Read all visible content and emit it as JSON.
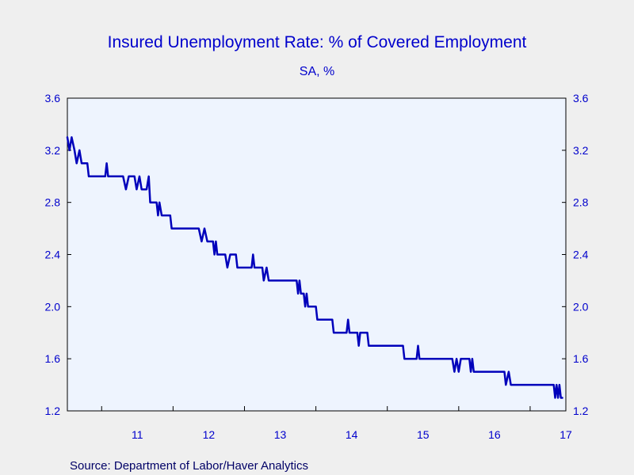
{
  "chart_data": {
    "type": "line",
    "title": "Insured Unemployment Rate: % of Covered Employment",
    "subtitle": "SA, %",
    "source": "Source:  Department of Labor/Haver Analytics",
    "ylim": [
      1.2,
      3.6
    ],
    "yticks": [
      "1.2",
      "1.6",
      "2.0",
      "2.4",
      "2.8",
      "3.2",
      "3.6"
    ],
    "xlim": [
      2010.52,
      2017.5
    ],
    "xtick_labels": [
      "11",
      "12",
      "13",
      "14",
      "15",
      "16",
      "17"
    ],
    "grid": false,
    "colors": {
      "line": "#0000bb",
      "plot_bg": "#eef4fe",
      "page_bg": "#efefef",
      "text": "#0000cc"
    },
    "series": [
      {
        "points": [
          [
            2010.52,
            3.3
          ],
          [
            2010.55,
            3.2
          ],
          [
            2010.58,
            3.3
          ],
          [
            2010.62,
            3.2
          ],
          [
            2010.65,
            3.1
          ],
          [
            2010.69,
            3.2
          ],
          [
            2010.72,
            3.1
          ],
          [
            2010.8,
            3.1
          ],
          [
            2010.82,
            3.0
          ],
          [
            2011.05,
            3.0
          ],
          [
            2011.07,
            3.1
          ],
          [
            2011.09,
            3.0
          ],
          [
            2011.3,
            3.0
          ],
          [
            2011.34,
            2.9
          ],
          [
            2011.38,
            3.0
          ],
          [
            2011.46,
            3.0
          ],
          [
            2011.49,
            2.9
          ],
          [
            2011.53,
            3.0
          ],
          [
            2011.56,
            2.9
          ],
          [
            2011.63,
            2.9
          ],
          [
            2011.66,
            3.0
          ],
          [
            2011.68,
            2.8
          ],
          [
            2011.77,
            2.8
          ],
          [
            2011.79,
            2.7
          ],
          [
            2011.81,
            2.8
          ],
          [
            2011.84,
            2.7
          ],
          [
            2011.96,
            2.7
          ],
          [
            2011.98,
            2.6
          ],
          [
            2012.36,
            2.6
          ],
          [
            2012.4,
            2.5
          ],
          [
            2012.44,
            2.6
          ],
          [
            2012.48,
            2.5
          ],
          [
            2012.56,
            2.5
          ],
          [
            2012.58,
            2.4
          ],
          [
            2012.6,
            2.5
          ],
          [
            2012.62,
            2.4
          ],
          [
            2012.73,
            2.4
          ],
          [
            2012.76,
            2.3
          ],
          [
            2012.8,
            2.4
          ],
          [
            2012.88,
            2.4
          ],
          [
            2012.9,
            2.3
          ],
          [
            2013.1,
            2.3
          ],
          [
            2013.12,
            2.4
          ],
          [
            2013.14,
            2.3
          ],
          [
            2013.25,
            2.3
          ],
          [
            2013.27,
            2.2
          ],
          [
            2013.31,
            2.3
          ],
          [
            2013.34,
            2.2
          ],
          [
            2013.73,
            2.2
          ],
          [
            2013.75,
            2.1
          ],
          [
            2013.77,
            2.2
          ],
          [
            2013.79,
            2.1
          ],
          [
            2013.83,
            2.1
          ],
          [
            2013.85,
            2.0
          ],
          [
            2013.87,
            2.1
          ],
          [
            2013.89,
            2.0
          ],
          [
            2014.0,
            2.0
          ],
          [
            2014.02,
            1.9
          ],
          [
            2014.23,
            1.9
          ],
          [
            2014.25,
            1.8
          ],
          [
            2014.43,
            1.8
          ],
          [
            2014.45,
            1.9
          ],
          [
            2014.47,
            1.8
          ],
          [
            2014.58,
            1.8
          ],
          [
            2014.6,
            1.7
          ],
          [
            2014.62,
            1.8
          ],
          [
            2014.72,
            1.8
          ],
          [
            2014.74,
            1.7
          ],
          [
            2015.22,
            1.7
          ],
          [
            2015.24,
            1.6
          ],
          [
            2015.41,
            1.6
          ],
          [
            2015.43,
            1.7
          ],
          [
            2015.45,
            1.6
          ],
          [
            2015.91,
            1.6
          ],
          [
            2015.94,
            1.5
          ],
          [
            2015.97,
            1.6
          ],
          [
            2016.0,
            1.5
          ],
          [
            2016.03,
            1.6
          ],
          [
            2016.15,
            1.6
          ],
          [
            2016.17,
            1.5
          ],
          [
            2016.19,
            1.6
          ],
          [
            2016.21,
            1.5
          ],
          [
            2016.64,
            1.5
          ],
          [
            2016.66,
            1.4
          ],
          [
            2016.7,
            1.5
          ],
          [
            2016.73,
            1.4
          ],
          [
            2017.33,
            1.4
          ],
          [
            2017.35,
            1.3
          ],
          [
            2017.37,
            1.4
          ],
          [
            2017.39,
            1.3
          ],
          [
            2017.41,
            1.4
          ],
          [
            2017.43,
            1.3
          ],
          [
            2017.45,
            1.3
          ]
        ]
      }
    ]
  }
}
